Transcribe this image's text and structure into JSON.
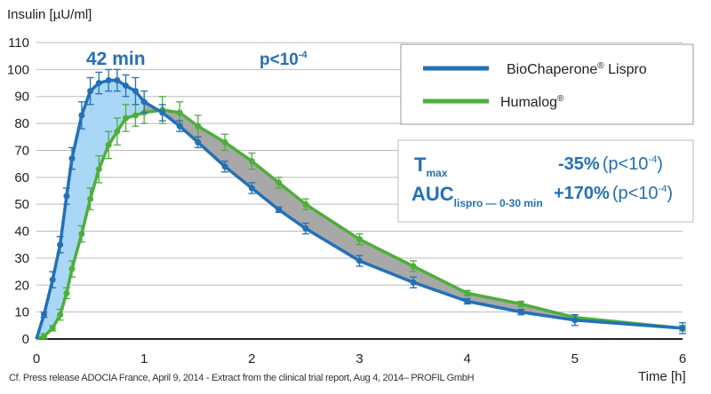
{
  "chart_data": {
    "type": "line",
    "ylabel": "Insulin [µU/ml]",
    "xlabel": "Time [h]",
    "xlim": [
      0,
      6
    ],
    "ylim": [
      0,
      110
    ],
    "xticks": [
      "0",
      "1",
      "2",
      "3",
      "4",
      "5",
      "6"
    ],
    "yticks": [
      "0",
      "10",
      "20",
      "30",
      "40",
      "50",
      "60",
      "70",
      "80",
      "90",
      "100",
      "110"
    ],
    "grid": true,
    "legend_position": "top-right",
    "annotations": {
      "tmax_diff": "42 min",
      "pvalue": "p<10",
      "pvalue_exp": "-4"
    },
    "colors": {
      "blue": "#2370b8",
      "green": "#4caf3a",
      "blue_fill": "#a9d7f5",
      "gray_fill": "#a8a8a8"
    },
    "x": [
      0,
      0.07,
      0.15,
      0.22,
      0.28,
      0.33,
      0.42,
      0.5,
      0.58,
      0.67,
      0.75,
      0.83,
      0.92,
      1.0,
      1.17,
      1.33,
      1.5,
      1.75,
      2.0,
      2.25,
      2.5,
      3.0,
      3.5,
      4.0,
      4.5,
      5.0,
      6.0
    ],
    "series": [
      {
        "name": "BioChaperone® Lispro",
        "label_main": "BioChaperone",
        "label_tail": " Lispro",
        "color": "#2370b8",
        "values": [
          0,
          9,
          22,
          35,
          53,
          67,
          83,
          92,
          95,
          96,
          96,
          94,
          92,
          88,
          84,
          79,
          73,
          64,
          56,
          48,
          41,
          29,
          21,
          14,
          10,
          7,
          4
        ],
        "errors": [
          0,
          1,
          3,
          3,
          3,
          4,
          5,
          5,
          4,
          4,
          4,
          4,
          5,
          4,
          3,
          2,
          2,
          2,
          2,
          1,
          2,
          2,
          2,
          1,
          1,
          2,
          2
        ]
      },
      {
        "name": "Humalog®",
        "label_main": "Humalog",
        "label_tail": "",
        "color": "#4caf3a",
        "values": [
          0,
          1,
          4,
          9,
          17,
          26,
          39,
          52,
          63,
          72,
          77,
          82,
          83,
          84,
          85,
          84,
          79,
          73,
          66,
          58,
          50,
          37,
          27,
          17,
          13,
          8,
          4
        ],
        "errors": [
          0,
          1,
          1,
          2,
          2,
          3,
          3,
          4,
          5,
          5,
          5,
          5,
          4,
          4,
          5,
          4,
          4,
          3,
          3,
          2,
          2,
          2,
          2,
          1,
          1,
          1,
          1
        ]
      }
    ],
    "stats": {
      "tmax_label": "T",
      "tmax_sub": "max",
      "tmax_value": "-35%",
      "tmax_p": "(p<10",
      "tmax_p_exp": "-4",
      "tmax_p_close": ")",
      "auc_label": "AUC",
      "auc_sub": "lispro — 0-30 min",
      "auc_value": "+170%",
      "auc_p": "(p<10",
      "auc_p_exp": "-4",
      "auc_p_close": ")"
    },
    "reg": "®"
  },
  "footer": "Cf. Press release ADOCIA France, April 9, 2014 - Extract from the clinical trial report, Aug 4, 2014– PROFIL GmbH"
}
